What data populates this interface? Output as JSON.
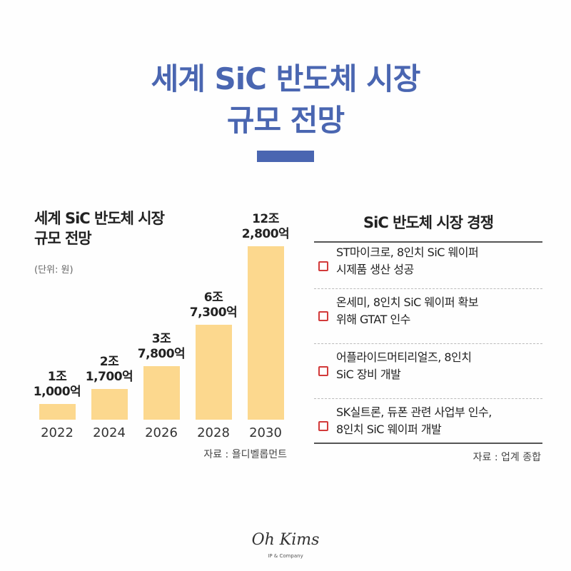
{
  "header": {
    "title": "세계 SiC 반도체 시장\n규모 전망"
  },
  "chart_data": {
    "type": "bar",
    "title": "세계 SiC 반도체 시장\n규모 전망",
    "subtitle": "(단위: 원)",
    "categories": [
      "2022",
      "2024",
      "2026",
      "2028",
      "2030"
    ],
    "values": [
      11000,
      21700,
      37800,
      67300,
      122800
    ],
    "value_labels": [
      "1조\n1,000억",
      "2조\n1,700억",
      "3조\n7,800억",
      "6조\n7,300억",
      "12조\n2,800억"
    ],
    "color": "#fcd88e",
    "source": "자료 : 욜디벨롭먼트"
  },
  "panel": {
    "title": "SiC 반도체 시장 경쟁",
    "items": [
      "ST마이크로, 8인치 SiC 웨이퍼\n시제품 생산 성공",
      "온세미, 8인치 SiC 웨이퍼 확보\n위해 GTAT 인수",
      "어플라이드머티리얼즈, 8인치\nSiC 장비 개발",
      "SK실트론, 듀폰 관련 사업부 인수,\n8인치 SiC 웨이퍼 개발"
    ],
    "source": "자료 : 업계 종합"
  },
  "footer": {
    "logo": "Oh Kims",
    "tagline": "IP & Company"
  }
}
